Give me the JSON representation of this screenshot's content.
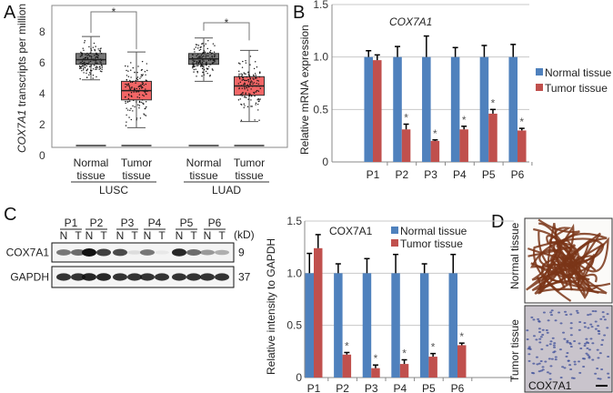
{
  "panels": {
    "a": "A",
    "b": "B",
    "c": "C",
    "d": "D"
  },
  "colors": {
    "normal_bar": "#4f81bd",
    "tumor_bar": "#c0504d",
    "normal_box": "#777777",
    "tumor_box": "#f26666"
  },
  "chart_data": [
    {
      "type": "box",
      "panel": "A",
      "ylabel_italic": "COX7A1",
      "ylabel_rest": " transcripts per million",
      "yticks": [
        "0",
        "2",
        "4",
        "6",
        "8"
      ],
      "ylim": [
        0,
        9.5
      ],
      "groups": [
        {
          "name": "LUSC",
          "boxes": [
            {
              "label_1": "Normal",
              "label_2": "tissue",
              "q1": 5.9,
              "median": 6.2,
              "q3": 6.6,
              "whisker_low": 4.9,
              "whisker_high": 7.7
            },
            {
              "label_1": "Tumor",
              "label_2": "tissue",
              "q1": 3.6,
              "median": 4.2,
              "q3": 4.8,
              "whisker_low": 1.8,
              "whisker_high": 6.7
            }
          ],
          "significance": "*"
        },
        {
          "name": "LUAD",
          "boxes": [
            {
              "label_1": "Normal",
              "label_2": "tissue",
              "q1": 5.9,
              "median": 6.25,
              "q3": 6.6,
              "whisker_low": 4.8,
              "whisker_high": 7.6
            },
            {
              "label_1": "Tumor",
              "label_2": "tissue",
              "q1": 3.9,
              "median": 4.5,
              "q3": 5.1,
              "whisker_low": 2.2,
              "whisker_high": 6.8
            }
          ],
          "significance": "*"
        }
      ]
    },
    {
      "type": "bar",
      "panel": "B",
      "title": "COX7A1",
      "ylabel": "Relative mRNA expression",
      "yticks": [
        "0",
        "0.5",
        "1.0",
        "1.5"
      ],
      "ylim": [
        0,
        1.5
      ],
      "categories": [
        "P1",
        "P2",
        "P3",
        "P4",
        "P5",
        "P6"
      ],
      "series": [
        {
          "name": "Normal tissue",
          "values": [
            1,
            1,
            1,
            1,
            1,
            1
          ],
          "errors": [
            0.06,
            0.1,
            0.2,
            0.09,
            0.11,
            0.12
          ]
        },
        {
          "name": "Tumor tissue",
          "values": [
            0.97,
            0.31,
            0.2,
            0.31,
            0.46,
            0.3
          ],
          "errors": [
            0.05,
            0.05,
            0.01,
            0.03,
            0.04,
            0.02
          ]
        }
      ],
      "significance": [
        "",
        "*",
        "*",
        "*",
        "*",
        "*"
      ]
    },
    {
      "type": "bar",
      "panel": "C",
      "title": "COX7A1",
      "ylabel": "Relative intensity to GAPDH",
      "yticks": [
        "0",
        "0.5",
        "1.0",
        "1.5"
      ],
      "ylim": [
        0,
        1.5
      ],
      "categories": [
        "P1",
        "P2",
        "P3",
        "P4",
        "P5",
        "P6"
      ],
      "series": [
        {
          "name": "Normal tissue",
          "values": [
            1,
            1,
            1,
            1,
            1,
            1
          ],
          "errors": [
            0.19,
            0.09,
            0.14,
            0.18,
            0.09,
            0.18
          ]
        },
        {
          "name": "Tumor tissue",
          "values": [
            1.24,
            0.22,
            0.09,
            0.13,
            0.2,
            0.31
          ],
          "errors": [
            0.13,
            0.02,
            0.03,
            0.04,
            0.03,
            0.02
          ]
        }
      ],
      "significance": [
        "",
        "*",
        "*",
        "*",
        "*",
        "*"
      ]
    }
  ],
  "western": {
    "patients": [
      "P1",
      "P2",
      "P3",
      "P4",
      "P5",
      "P6"
    ],
    "lane_n": "N",
    "lane_t": "T",
    "kd_label": "(kD)",
    "rows": [
      {
        "name": "COX7A1",
        "kd": "9",
        "intensities": [
          0.55,
          0.6,
          1,
          0.8,
          0.75,
          0.1,
          0.55,
          0.05,
          0.9,
          0.6,
          0.4,
          0.3
        ]
      },
      {
        "name": "GAPDH",
        "kd": "37",
        "intensities": [
          0.85,
          0.85,
          0.9,
          0.9,
          0.85,
          0.85,
          0.85,
          0.85,
          0.85,
          0.85,
          0.85,
          0.85
        ]
      }
    ]
  },
  "ihc": {
    "normal_label": "Normal tissue",
    "tumor_label": "Tumor tissue",
    "stain_label": "COX7A1"
  }
}
